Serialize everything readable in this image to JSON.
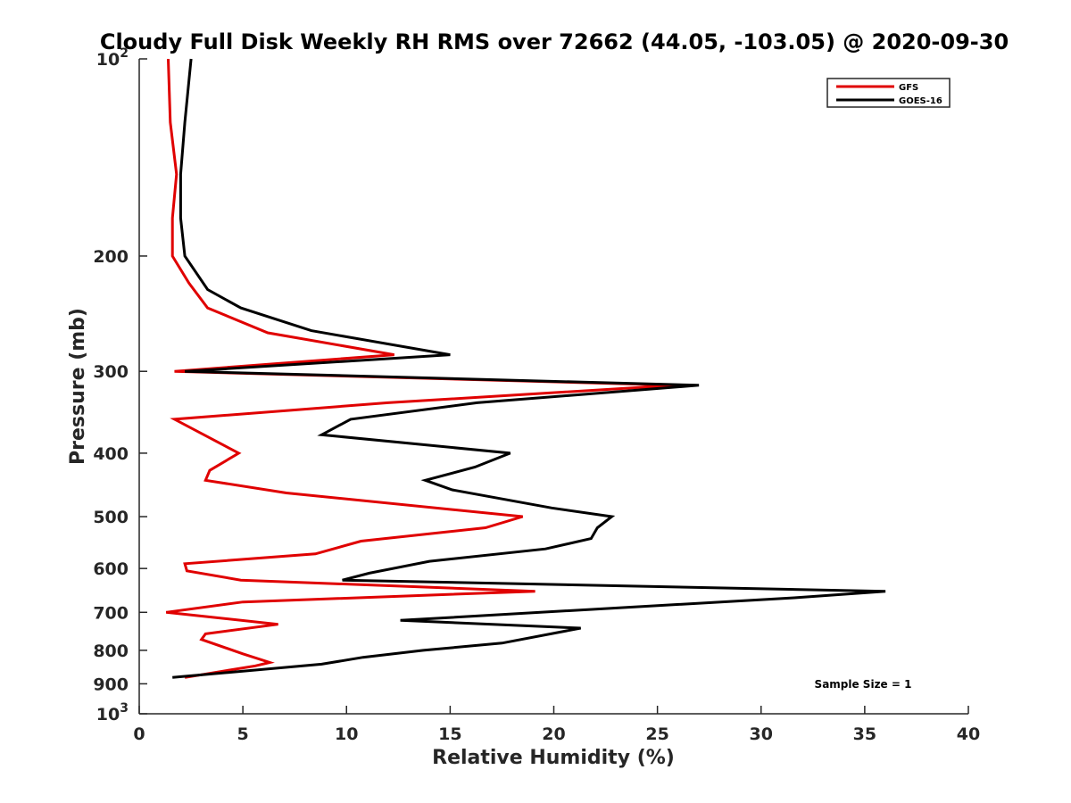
{
  "chart_data": {
    "type": "line",
    "title": "Cloudy Full Disk Weekly RH RMS over 72662 (44.05, -103.05) @ 2020-09-30",
    "xlabel": "Relative Humidity (%)",
    "ylabel": "Pressure (mb)",
    "xlim": [
      0,
      40
    ],
    "ylim": [
      100,
      1000
    ],
    "y_scale": "log",
    "y_reversed": true,
    "grid": false,
    "legend_position": "top-right",
    "x_ticks": [
      0,
      5,
      10,
      15,
      20,
      25,
      30,
      35,
      40
    ],
    "x_tick_labels": [
      "0",
      "5",
      "10",
      "15",
      "20",
      "25",
      "30",
      "35",
      "40"
    ],
    "y_ticks": [
      200,
      300,
      400,
      500,
      600,
      700,
      800,
      900
    ],
    "y_tick_labels": [
      "200",
      "300",
      "400",
      "500",
      "600",
      "700",
      "800",
      "900"
    ],
    "y_tick_label_top": {
      "base": "10",
      "exp": "2"
    },
    "y_tick_label_bottom": {
      "base": "10",
      "exp": "3"
    },
    "annotation": "Sample Size = 1",
    "series": [
      {
        "name": "GFS",
        "color": "#e00000",
        "points": [
          [
            1.4,
            100
          ],
          [
            1.5,
            125
          ],
          [
            1.8,
            150
          ],
          [
            1.6,
            175
          ],
          [
            1.6,
            200
          ],
          [
            2.4,
            220
          ],
          [
            3.3,
            240
          ],
          [
            6.2,
            262
          ],
          [
            12.3,
            283
          ],
          [
            1.7,
            300
          ],
          [
            25.9,
            315
          ],
          [
            12.0,
            335
          ],
          [
            1.7,
            355
          ],
          [
            4.8,
            400
          ],
          [
            3.4,
            425
          ],
          [
            3.2,
            440
          ],
          [
            7.1,
            460
          ],
          [
            18.5,
            500
          ],
          [
            16.7,
            520
          ],
          [
            10.7,
            545
          ],
          [
            8.5,
            570
          ],
          [
            2.2,
            590
          ],
          [
            2.3,
            605
          ],
          [
            4.9,
            625
          ],
          [
            19.1,
            650
          ],
          [
            5.0,
            675
          ],
          [
            1.3,
            700
          ],
          [
            6.7,
            730
          ],
          [
            3.2,
            755
          ],
          [
            3.0,
            770
          ],
          [
            5.0,
            810
          ],
          [
            6.3,
            835
          ],
          [
            5.6,
            845
          ],
          [
            2.2,
            880
          ]
        ]
      },
      {
        "name": "GOES-16",
        "color": "#000000",
        "points": [
          [
            2.5,
            100
          ],
          [
            2.2,
            125
          ],
          [
            2.0,
            150
          ],
          [
            2.0,
            175
          ],
          [
            2.2,
            200
          ],
          [
            3.3,
            225
          ],
          [
            4.9,
            240
          ],
          [
            8.3,
            260
          ],
          [
            15.0,
            283
          ],
          [
            2.2,
            300
          ],
          [
            27.0,
            315
          ],
          [
            16.3,
            335
          ],
          [
            10.2,
            355
          ],
          [
            8.8,
            375
          ],
          [
            17.9,
            400
          ],
          [
            16.2,
            420
          ],
          [
            13.8,
            440
          ],
          [
            15.1,
            455
          ],
          [
            19.9,
            485
          ],
          [
            22.8,
            500
          ],
          [
            22.1,
            520
          ],
          [
            21.8,
            540
          ],
          [
            19.6,
            560
          ],
          [
            14.0,
            585
          ],
          [
            11.1,
            610
          ],
          [
            9.8,
            625
          ],
          [
            36.0,
            650
          ],
          [
            31.6,
            665
          ],
          [
            12.6,
            720
          ],
          [
            21.3,
            740
          ],
          [
            17.5,
            780
          ],
          [
            13.7,
            800
          ],
          [
            10.8,
            820
          ],
          [
            8.8,
            840
          ],
          [
            1.6,
            880
          ]
        ]
      }
    ]
  }
}
